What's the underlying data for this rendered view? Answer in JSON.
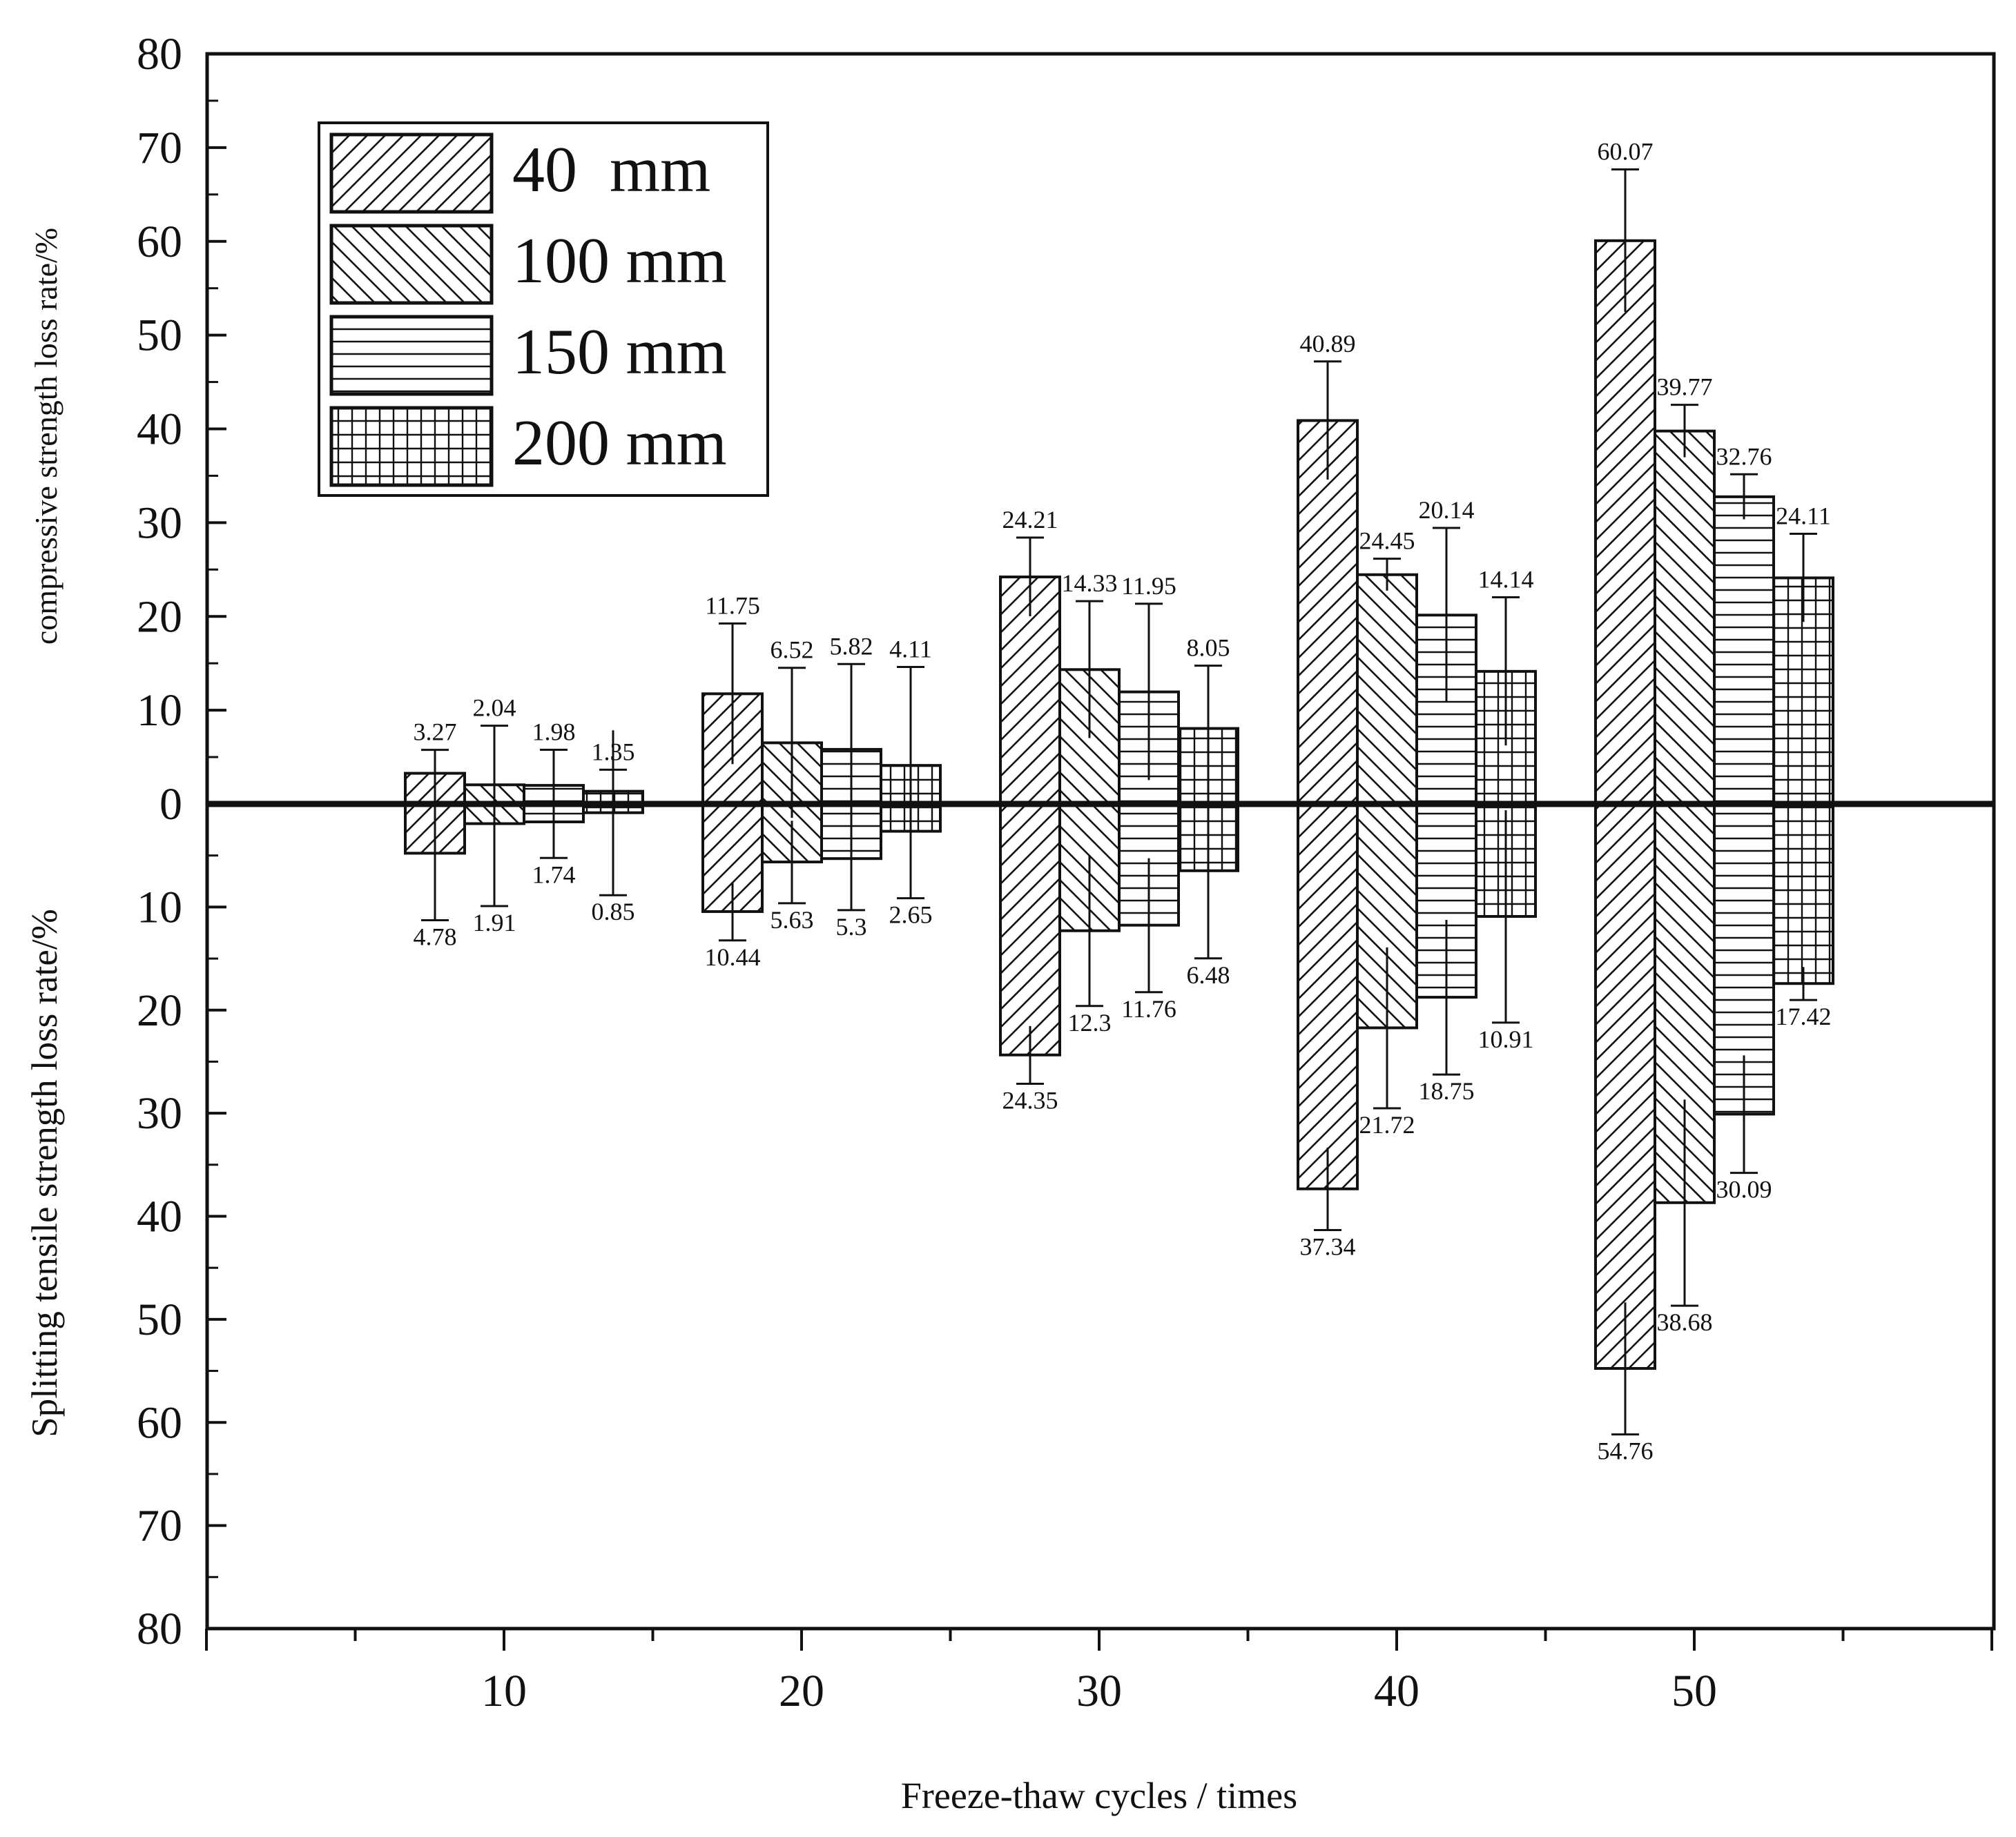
{
  "chart_data": {
    "type": "bar",
    "layout": "diverging-bar",
    "x": [
      10,
      20,
      30,
      40,
      50
    ],
    "x_ticks": [
      "10",
      "20",
      "30",
      "40",
      "50"
    ],
    "xlabel": "Freeze-thaw cycles / times",
    "ylabel_upper": "compressive strength loss rate/%",
    "ylabel_lower": "Splitting tensile strength loss rate/%",
    "upper_ylim": [
      0,
      80
    ],
    "lower_ylim": [
      0,
      80
    ],
    "upper_ticks": [
      "80",
      "70",
      "60",
      "50",
      "40",
      "30",
      "20",
      "10"
    ],
    "lower_ticks": [
      "10",
      "20",
      "30",
      "40",
      "50",
      "60",
      "70",
      "80"
    ],
    "zero_tick": "0",
    "legend_position": "top-left",
    "colors": {
      "ink": "#111111",
      "background": "#ffffff"
    },
    "series": [
      {
        "name": "40  mm",
        "pattern": "diag-forward",
        "compressive": [
          3.27,
          11.75,
          24.21,
          40.89,
          60.07
        ],
        "compressive_labels": [
          "3.27",
          "11.75",
          "24.21",
          "40.89",
          "60.07"
        ],
        "compressive_err": [
          2.5,
          7.5,
          4.2,
          6.3,
          7.6
        ],
        "splitting": [
          4.78,
          10.44,
          24.35,
          37.34,
          54.76
        ],
        "splitting_labels": [
          "4.78",
          "10.44",
          "24.35",
          "37.34",
          "54.76"
        ],
        "splitting_err": [
          6.5,
          2.8,
          2.8,
          4.0,
          6.4
        ]
      },
      {
        "name": "100 mm",
        "pattern": "diag-back",
        "compressive": [
          2.04,
          6.52,
          14.33,
          24.45,
          39.77
        ],
        "compressive_labels": [
          "2.04",
          "6.52",
          "14.33",
          "24.45",
          "39.77"
        ],
        "compressive_err": [
          6.3,
          8.0,
          7.3,
          1.7,
          2.8
        ],
        "splitting": [
          1.91,
          5.63,
          12.3,
          21.72,
          38.68
        ],
        "splitting_labels": [
          "1.91",
          "5.63",
          "12.3",
          "21.72",
          "38.68"
        ],
        "splitting_err": [
          8.0,
          4.0,
          7.3,
          7.8,
          10.0
        ]
      },
      {
        "name": "150 mm",
        "pattern": "horizontal",
        "compressive": [
          1.98,
          5.82,
          11.95,
          20.14,
          32.76
        ],
        "compressive_labels": [
          "1.98",
          "5.82",
          "11.95",
          "20.14",
          "32.76"
        ],
        "compressive_err": [
          3.8,
          9.1,
          9.4,
          9.3,
          2.4
        ],
        "splitting": [
          1.74,
          5.3,
          11.76,
          18.75,
          30.09
        ],
        "splitting_labels": [
          "1.74",
          "5.3",
          "11.76",
          "18.75",
          "30.09"
        ],
        "splitting_err": [
          3.5,
          5.0,
          6.5,
          7.5,
          5.7
        ]
      },
      {
        "name": "200 mm",
        "pattern": "grid",
        "compressive": [
          1.35,
          4.11,
          8.05,
          14.14,
          24.11
        ],
        "compressive_labels": [
          "1.35",
          "4.11",
          "8.05",
          "14.14",
          "24.11"
        ],
        "compressive_err": [
          2.3,
          10.5,
          6.7,
          7.9,
          4.7
        ],
        "splitting": [
          0.85,
          2.65,
          6.48,
          10.91,
          17.42
        ],
        "splitting_labels": [
          "0.85",
          "2.65",
          "6.48",
          "10.91",
          "17.42"
        ],
        "splitting_err": [
          8.0,
          6.5,
          8.5,
          10.3,
          1.6
        ]
      }
    ]
  }
}
